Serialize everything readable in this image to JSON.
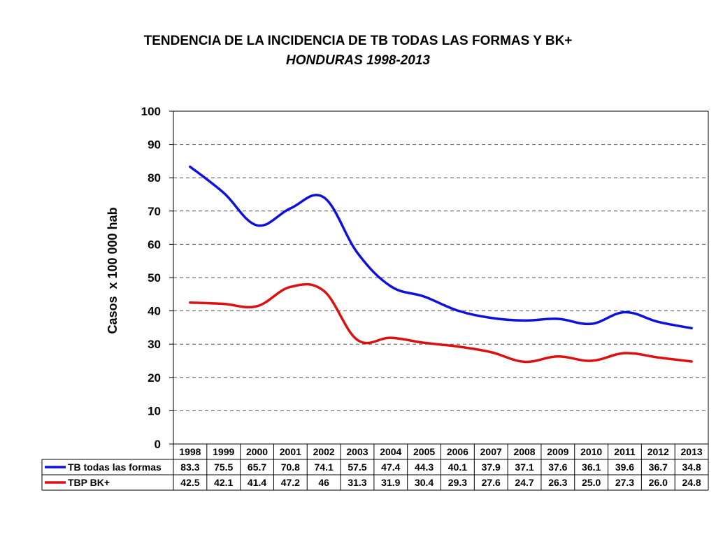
{
  "title": "TENDENCIA DE LA INCIDENCIA DE TB TODAS LAS FORMAS Y BK+",
  "subtitle": "HONDURAS 1998-2013",
  "chart_data": {
    "type": "line",
    "title": "TENDENCIA DE LA INCIDENCIA DE TB TODAS LAS FORMAS Y BK+",
    "subtitle": "HONDURAS 1998-2013",
    "xlabel": "",
    "ylabel": "Casos  x 100 000 hab",
    "ylim": [
      0,
      100
    ],
    "yticks": [
      "0",
      "10",
      "20",
      "30",
      "40",
      "50",
      "60",
      "70",
      "80",
      "90",
      "100"
    ],
    "grid": true,
    "legend": "data-table",
    "categories": [
      "1998",
      "1999",
      "2000",
      "2001",
      "2002",
      "2003",
      "2004",
      "2005",
      "2006",
      "2007",
      "2008",
      "2009",
      "2010",
      "2011",
      "2012",
      "2013"
    ],
    "series": [
      {
        "name": "TB todas las formas",
        "color": "#1010dd",
        "values": [
          83.3,
          75.5,
          65.7,
          70.8,
          74.1,
          57.5,
          47.4,
          44.3,
          40.1,
          37.9,
          37.1,
          37.6,
          36.1,
          39.6,
          36.7,
          34.8
        ],
        "labels": [
          "83.3",
          "75.5",
          "65.7",
          "70.8",
          "74.1",
          "57.5",
          "47.4",
          "44.3",
          "40.1",
          "37.9",
          "37.1",
          "37.6",
          "36.1",
          "39.6",
          "36.7",
          "34.8"
        ]
      },
      {
        "name": "TBP BK+",
        "color": "#dd1010",
        "values": [
          42.5,
          42.1,
          41.4,
          47.2,
          46,
          31.3,
          31.9,
          30.4,
          29.3,
          27.6,
          24.7,
          26.3,
          25.0,
          27.3,
          26.0,
          24.8
        ],
        "labels": [
          "42.5",
          "42.1",
          "41.4",
          "47.2",
          "46",
          "31.3",
          "31.9",
          "30.4",
          "29.3",
          "27.6",
          "24.7",
          "26.3",
          "25.0",
          "27.3",
          "26.0",
          "24.8"
        ]
      }
    ]
  }
}
